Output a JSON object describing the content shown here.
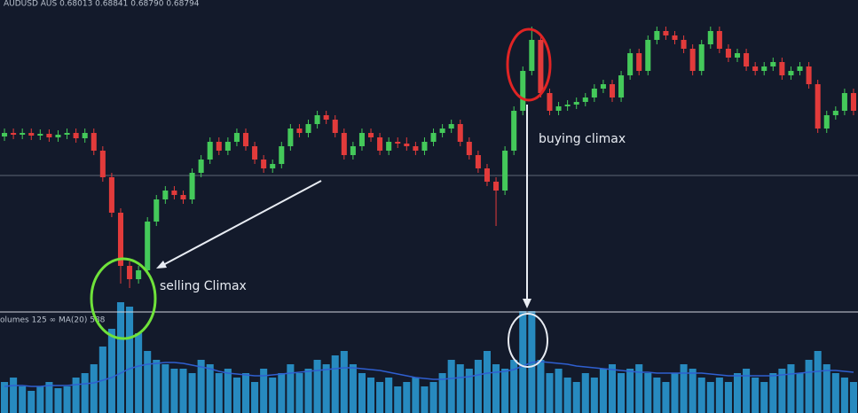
{
  "chart_data": {
    "type": "candlestick",
    "header": "AUDUSD AUS 0.68013 0.68841 0.68790 0.68794",
    "volume_label": "olumes 125 ∞ MA(20) 588",
    "annotations": [
      "selling Climax",
      "buying climax"
    ],
    "up_color": "#44c95a",
    "down_color": "#e23b3b",
    "volume_color": "#2b9fd9",
    "ma_color": "#2f5fd0",
    "ylim": [
      0,
      350
    ],
    "volume_ylim": [
      0,
      130
    ],
    "open": [
      196,
      200,
      198,
      200,
      197,
      199,
      195,
      198,
      200,
      194,
      200,
      180,
      150,
      110,
      50,
      35,
      45,
      100,
      125,
      135,
      130,
      125,
      155,
      170,
      190,
      180,
      190,
      200,
      185,
      170,
      160,
      165,
      185,
      205,
      200,
      210,
      220,
      215,
      200,
      175,
      185,
      200,
      195,
      180,
      190,
      188,
      185,
      180,
      190,
      200,
      205,
      210,
      190,
      175,
      160,
      145,
      135,
      180,
      225,
      270,
      305,
      245,
      225,
      230,
      232,
      235,
      240,
      250,
      255,
      240,
      265,
      290,
      270,
      305,
      315,
      310,
      305,
      295,
      270,
      300,
      315,
      295,
      285,
      290,
      275,
      270,
      275,
      280,
      265,
      270,
      275,
      255,
      205,
      220,
      225,
      245
    ],
    "high": [
      205,
      205,
      205,
      205,
      204,
      204,
      203,
      205,
      205,
      205,
      205,
      185,
      155,
      115,
      55,
      50,
      105,
      130,
      140,
      140,
      135,
      160,
      175,
      195,
      195,
      195,
      205,
      205,
      190,
      175,
      170,
      190,
      210,
      210,
      215,
      225,
      225,
      220,
      205,
      190,
      205,
      205,
      200,
      195,
      195,
      195,
      190,
      195,
      205,
      210,
      215,
      215,
      195,
      180,
      165,
      150,
      185,
      230,
      275,
      320,
      310,
      250,
      235,
      237,
      240,
      245,
      255,
      260,
      260,
      270,
      295,
      295,
      310,
      320,
      320,
      315,
      310,
      300,
      305,
      320,
      320,
      300,
      295,
      295,
      280,
      280,
      285,
      285,
      275,
      280,
      280,
      260,
      225,
      230,
      250,
      250
    ],
    "low": [
      191,
      193,
      193,
      192,
      192,
      190,
      190,
      193,
      189,
      189,
      175,
      145,
      105,
      30,
      25,
      30,
      40,
      95,
      120,
      125,
      120,
      120,
      150,
      165,
      175,
      175,
      185,
      180,
      165,
      155,
      155,
      160,
      180,
      195,
      195,
      205,
      210,
      195,
      170,
      170,
      180,
      190,
      175,
      175,
      183,
      180,
      175,
      175,
      185,
      195,
      200,
      185,
      170,
      155,
      140,
      95,
      130,
      175,
      220,
      265,
      240,
      220,
      220,
      225,
      227,
      230,
      235,
      245,
      235,
      235,
      260,
      265,
      265,
      300,
      305,
      300,
      290,
      265,
      265,
      295,
      290,
      280,
      280,
      270,
      265,
      265,
      270,
      260,
      260,
      265,
      250,
      200,
      200,
      215,
      220,
      220
    ],
    "close": [
      200,
      198,
      200,
      197,
      199,
      195,
      198,
      200,
      194,
      200,
      180,
      150,
      110,
      50,
      35,
      45,
      100,
      125,
      135,
      130,
      125,
      155,
      170,
      190,
      180,
      190,
      200,
      185,
      170,
      160,
      165,
      185,
      205,
      200,
      210,
      220,
      215,
      200,
      175,
      185,
      200,
      195,
      180,
      190,
      188,
      185,
      180,
      190,
      200,
      205,
      210,
      190,
      175,
      160,
      145,
      135,
      180,
      225,
      270,
      305,
      245,
      225,
      230,
      232,
      235,
      240,
      250,
      255,
      240,
      265,
      290,
      270,
      305,
      315,
      310,
      305,
      295,
      270,
      300,
      315,
      295,
      285,
      290,
      275,
      270,
      275,
      280,
      265,
      270,
      275,
      255,
      205,
      220,
      225,
      245,
      225
    ],
    "volume": [
      35,
      40,
      30,
      25,
      30,
      35,
      28,
      30,
      40,
      45,
      55,
      75,
      95,
      125,
      120,
      90,
      70,
      60,
      55,
      50,
      50,
      45,
      60,
      55,
      45,
      50,
      40,
      45,
      35,
      50,
      40,
      45,
      55,
      45,
      50,
      60,
      55,
      65,
      70,
      55,
      45,
      40,
      35,
      40,
      30,
      35,
      40,
      30,
      35,
      45,
      60,
      55,
      50,
      60,
      70,
      55,
      50,
      60,
      115,
      115,
      60,
      45,
      50,
      40,
      35,
      45,
      40,
      50,
      55,
      45,
      50,
      55,
      45,
      40,
      35,
      45,
      55,
      50,
      40,
      35,
      40,
      35,
      45,
      50,
      40,
      35,
      45,
      50,
      55,
      45,
      60,
      70,
      55,
      45,
      40,
      35
    ],
    "volume_ma": [
      30,
      31,
      31,
      30,
      30,
      31,
      31,
      31,
      32,
      33,
      34,
      37,
      40,
      45,
      50,
      53,
      55,
      56,
      57,
      57,
      56,
      54,
      52,
      50,
      47,
      45,
      44,
      43,
      42,
      42,
      43,
      44,
      45,
      46,
      47,
      48,
      49,
      50,
      51,
      51,
      50,
      49,
      48,
      46,
      44,
      42,
      40,
      39,
      38,
      38,
      39,
      40,
      41,
      43,
      45,
      46,
      47,
      49,
      53,
      57,
      58,
      57,
      56,
      55,
      53,
      52,
      51,
      50,
      49,
      48,
      47,
      46,
      46,
      45,
      45,
      45,
      45,
      45,
      45,
      44,
      43,
      42,
      42,
      42,
      42,
      42,
      42,
      43,
      44,
      45,
      46,
      47,
      48,
      48,
      47,
      46
    ]
  }
}
